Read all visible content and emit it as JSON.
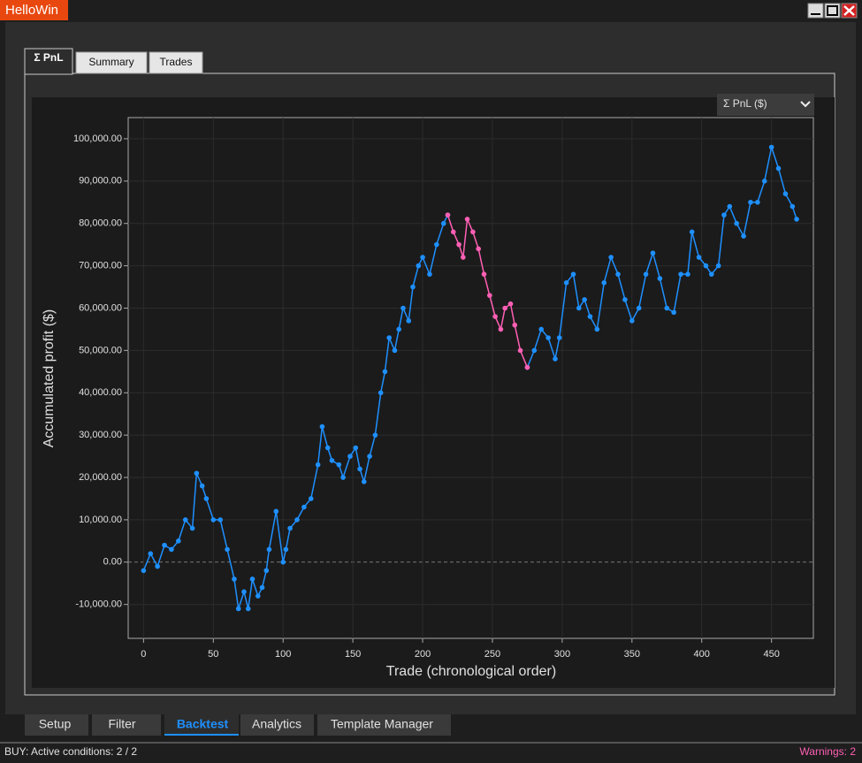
{
  "window": {
    "title": "HelloWin"
  },
  "tabs": [
    "Σ PnL",
    "Summary",
    "Trades"
  ],
  "dropdown": "Σ PnL ($)",
  "chart_data": {
    "type": "line",
    "x_label": "Trade (chronological order)",
    "y_label": "Accumulated profit ($)",
    "xlim": [
      -11,
      480
    ],
    "ylim": [
      -18000,
      105000
    ],
    "xticks": [
      0,
      50,
      100,
      150,
      200,
      250,
      300,
      350,
      400,
      450
    ],
    "yticks": [
      {
        "value": -10000,
        "label": "-10,000.00"
      },
      {
        "value": 0,
        "label": "0.00"
      },
      {
        "value": 10000,
        "label": "10,000.00"
      },
      {
        "value": 20000,
        "label": "20,000.00"
      },
      {
        "value": 30000,
        "label": "30,000.00"
      },
      {
        "value": 40000,
        "label": "40,000.00"
      },
      {
        "value": 50000,
        "label": "50,000.00"
      },
      {
        "value": 60000,
        "label": "60,000.00"
      },
      {
        "value": 70000,
        "label": "70,000.00"
      },
      {
        "value": 80000,
        "label": "80,000.00"
      },
      {
        "value": 90000,
        "label": "90,000.00"
      },
      {
        "value": 100000,
        "label": "100,000.00"
      }
    ],
    "grid": true,
    "series": [
      {
        "color": "#1e90ff",
        "x": [
          0,
          5,
          10,
          15,
          20,
          25,
          30,
          35,
          38,
          42,
          45,
          50,
          55,
          60,
          65,
          68,
          72,
          75,
          78,
          82,
          85,
          88,
          90,
          95,
          100,
          102,
          105,
          110,
          115,
          120,
          125,
          128,
          132,
          135,
          140,
          143,
          148,
          152,
          155,
          158,
          162,
          166,
          170,
          173,
          176,
          180,
          183,
          186,
          190,
          193,
          197,
          200,
          205,
          210,
          215,
          218,
          null,
          275,
          280,
          285,
          290,
          295,
          298,
          303,
          308,
          312,
          316,
          320,
          325,
          330,
          335,
          340,
          345,
          350,
          355,
          360,
          365,
          370,
          375,
          380,
          385,
          390,
          393,
          398,
          403,
          407,
          412,
          416,
          420,
          425,
          430,
          435,
          440,
          445,
          450,
          455,
          460,
          465,
          468
        ],
        "values": [
          -2000,
          2000,
          -1000,
          4000,
          3000,
          5000,
          10000,
          8000,
          21000,
          18000,
          15000,
          10000,
          10000,
          3000,
          -4000,
          -11000,
          -7000,
          -11000,
          -4000,
          -8000,
          -6000,
          -2000,
          3000,
          12000,
          0,
          3000,
          8000,
          10000,
          13000,
          15000,
          23000,
          32000,
          27000,
          24000,
          23000,
          20000,
          25000,
          27000,
          22000,
          19000,
          25000,
          30000,
          40000,
          45000,
          53000,
          50000,
          55000,
          60000,
          57000,
          65000,
          70000,
          72000,
          68000,
          75000,
          80000,
          82000,
          null,
          46000,
          50000,
          55000,
          53000,
          48000,
          53000,
          66000,
          68000,
          60000,
          62000,
          58000,
          55000,
          66000,
          72000,
          68000,
          62000,
          57000,
          60000,
          68000,
          73000,
          67000,
          60000,
          59000,
          68000,
          68000,
          78000,
          72000,
          70000,
          68000,
          70000,
          82000,
          84000,
          80000,
          77000,
          85000,
          85000,
          90000,
          98000,
          93000,
          87000,
          84000,
          81000
        ]
      },
      {
        "color": "#ff5fb4",
        "x": [
          218,
          222,
          226,
          229,
          232,
          236,
          240,
          244,
          248,
          252,
          256,
          259,
          263,
          266,
          270,
          275
        ],
        "values": [
          82000,
          78000,
          75000,
          72000,
          81000,
          78000,
          74000,
          68000,
          63000,
          58000,
          55000,
          60000,
          61000,
          56000,
          50000,
          46000
        ]
      }
    ]
  },
  "bottom_tabs": [
    "Setup",
    "Filter",
    "Backtest",
    "Analytics",
    "Template Manager"
  ],
  "status": {
    "left": "BUY:  Active conditions: 2 / 2",
    "right": "Warnings: 2"
  }
}
